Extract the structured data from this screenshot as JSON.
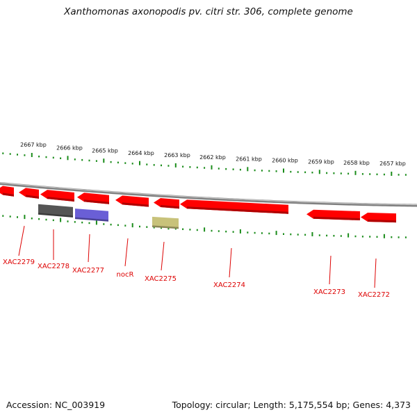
{
  "title": "Xanthomonas axonopodis pv. citri str. 306, complete genome",
  "footer": {
    "accession": "Accession: NC_003919",
    "summary": "Topology: circular; Length: 5,175,554 bp; Genes: 4,373"
  },
  "ruler": {
    "labels": [
      "2667 kbp",
      "2666 kbp",
      "2665 kbp",
      "2664 kbp",
      "2663 kbp",
      "2662 kbp",
      "2661 kbp",
      "2660 kbp",
      "2659 kbp",
      "2658 kbp",
      "2657 kbp"
    ]
  },
  "colors": {
    "backbone": "#808080",
    "ticks": "#1a8c1a",
    "gene": "#ff0000",
    "gene_dark": "#b00000",
    "gene_label": "#dd0000",
    "feature_grey": "#555555",
    "feature_blue": "#6a5fd6",
    "feature_olive": "#c8c27a"
  },
  "genes": [
    {
      "label": "XAC2279"
    },
    {
      "label": "XAC2278"
    },
    {
      "label": "XAC2277"
    },
    {
      "label": "nocR"
    },
    {
      "label": "XAC2275"
    },
    {
      "label": "XAC2274"
    },
    {
      "label": "XAC2273"
    },
    {
      "label": "XAC2272"
    }
  ]
}
